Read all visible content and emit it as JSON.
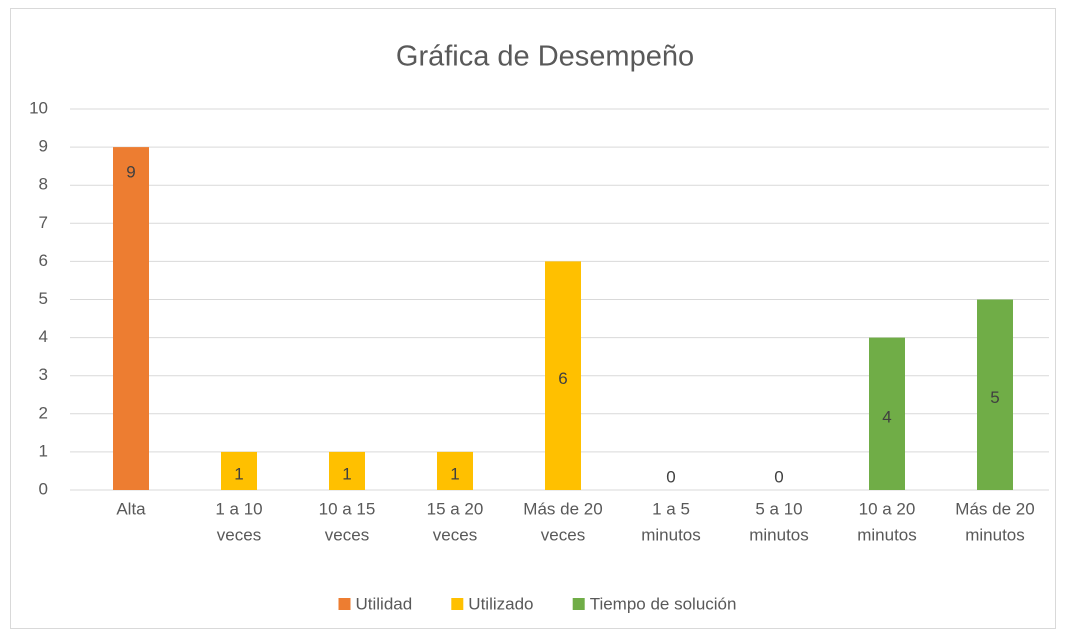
{
  "chart_data": {
    "type": "bar",
    "title": "Gráfica de Desempeño",
    "categories": [
      [
        "Alta"
      ],
      [
        "1 a 10",
        "veces"
      ],
      [
        "10 a 15",
        "veces"
      ],
      [
        "15 a 20",
        "veces"
      ],
      [
        "Más de 20",
        "veces"
      ],
      [
        "1 a 5",
        "minutos"
      ],
      [
        "5 a 10",
        "minutos"
      ],
      [
        "10 a 20",
        "minutos"
      ],
      [
        "Más de 20",
        "minutos"
      ]
    ],
    "series": [
      {
        "name": "Utilidad",
        "color": "#ed7d31",
        "values": [
          9,
          null,
          null,
          null,
          null,
          null,
          null,
          null,
          null
        ],
        "label_position": "inside_end"
      },
      {
        "name": "Utilizado",
        "color": "#ffc000",
        "values": [
          null,
          1,
          1,
          1,
          6,
          null,
          null,
          null,
          null
        ],
        "label_position": "center"
      },
      {
        "name": "Tiempo de solución",
        "color": "#70ad47",
        "values": [
          null,
          null,
          null,
          null,
          null,
          0,
          0,
          4,
          5
        ],
        "label_position": "center"
      }
    ],
    "ylim": [
      0,
      10
    ],
    "yticks": [
      0,
      1,
      2,
      3,
      4,
      5,
      6,
      7,
      8,
      9,
      10
    ],
    "grid": true,
    "legend": "bottom"
  }
}
